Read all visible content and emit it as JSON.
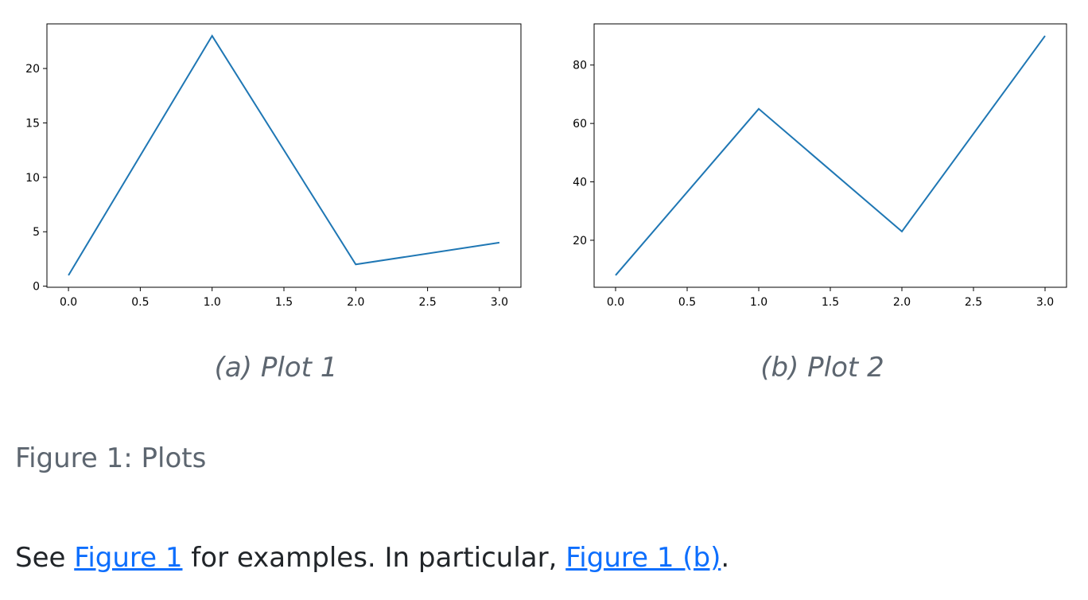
{
  "chart_data": [
    {
      "type": "line",
      "caption": "(a) Plot 1",
      "color": "#1f77b4",
      "x": [
        0,
        1,
        2,
        3
      ],
      "values": [
        1,
        23,
        2,
        4
      ],
      "xlim": [
        -0.15,
        3.15
      ],
      "ylim": [
        -0.1,
        24.1
      ],
      "xticks": [
        {
          "value": 0,
          "label": "0.0"
        },
        {
          "value": 0.5,
          "label": "0.5"
        },
        {
          "value": 1,
          "label": "1.0"
        },
        {
          "value": 1.5,
          "label": "1.5"
        },
        {
          "value": 2,
          "label": "2.0"
        },
        {
          "value": 2.5,
          "label": "2.5"
        },
        {
          "value": 3,
          "label": "3.0"
        }
      ],
      "yticks": [
        0,
        5,
        10,
        15,
        20
      ]
    },
    {
      "type": "line",
      "caption": "(b) Plot 2",
      "color": "#1f77b4",
      "x": [
        0,
        1,
        2,
        3
      ],
      "values": [
        8,
        65,
        23,
        90
      ],
      "xlim": [
        -0.15,
        3.15
      ],
      "ylim": [
        3.9,
        94.1
      ],
      "xticks": [
        {
          "value": 0,
          "label": "0.0"
        },
        {
          "value": 0.5,
          "label": "0.5"
        },
        {
          "value": 1,
          "label": "1.0"
        },
        {
          "value": 1.5,
          "label": "1.5"
        },
        {
          "value": 2,
          "label": "2.0"
        },
        {
          "value": 2.5,
          "label": "2.5"
        },
        {
          "value": 3,
          "label": "3.0"
        }
      ],
      "yticks": [
        20,
        40,
        60,
        80
      ]
    }
  ],
  "figure_caption": "Figure 1: Plots",
  "paragraph": [
    "See",
    "Figure 1",
    "for examples. In particular,",
    "Figure 1 (b)",
    "."
  ]
}
